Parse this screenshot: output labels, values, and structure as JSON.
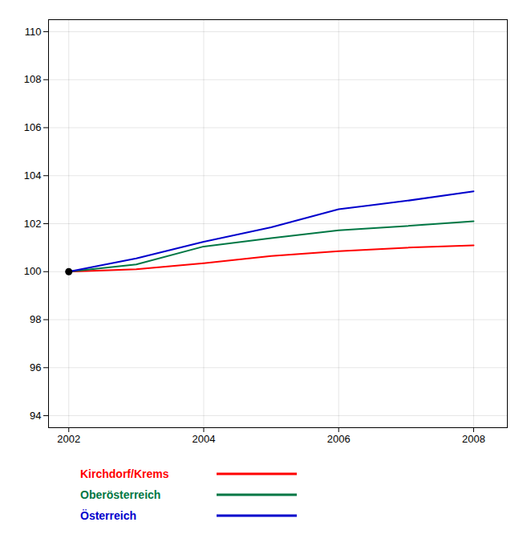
{
  "chart_data": {
    "type": "line",
    "x": [
      2002,
      2003,
      2004,
      2005,
      2006,
      2007,
      2008
    ],
    "series": [
      {
        "name": "Kirchdorf/Krems",
        "color": "#ff0000",
        "values": [
          100.0,
          100.1,
          100.35,
          100.65,
          100.85,
          101.0,
          101.1
        ]
      },
      {
        "name": "Oberösterreich",
        "color": "#007744",
        "values": [
          100.0,
          100.3,
          101.05,
          101.4,
          101.72,
          101.9,
          102.1
        ]
      },
      {
        "name": "Österreich",
        "color": "#0000cc",
        "values": [
          100.0,
          100.55,
          101.25,
          101.85,
          102.6,
          102.95,
          103.35
        ]
      }
    ],
    "points": [
      {
        "x": 2002,
        "y": 100.0,
        "color": "#000000"
      }
    ],
    "xlim": [
      2001.7,
      2008.5
    ],
    "xticks": [
      2002,
      2004,
      2006,
      2008
    ],
    "ylim": [
      93.5,
      110.5
    ],
    "yticks": [
      94,
      96,
      98,
      100,
      102,
      104,
      106,
      108,
      110
    ],
    "grid": true,
    "legend": "bottom"
  }
}
